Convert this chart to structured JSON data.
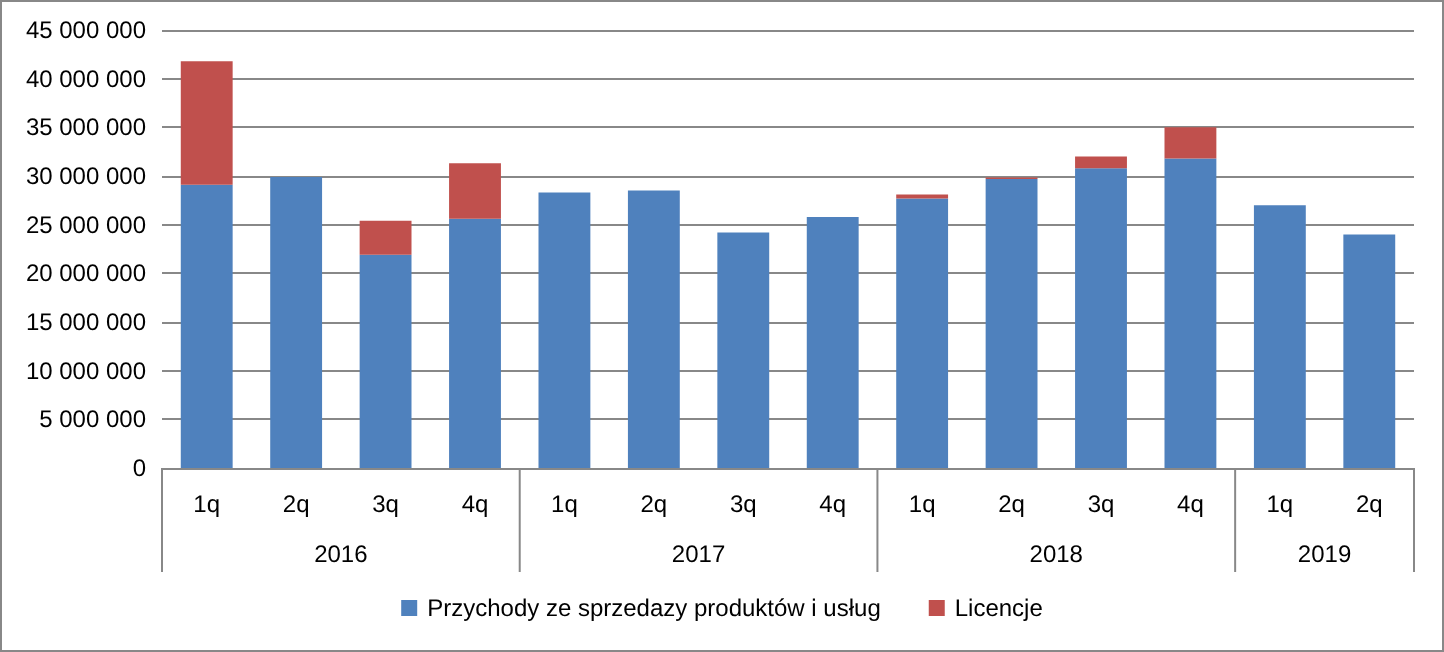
{
  "chart_data": {
    "type": "bar",
    "stacked": true,
    "categories": [
      "1q",
      "2q",
      "3q",
      "4q",
      "1q",
      "2q",
      "3q",
      "4q",
      "1q",
      "2q",
      "3q",
      "4q",
      "1q",
      "2q"
    ],
    "annotations": [
      "2016",
      "2017",
      "2018",
      "2019"
    ],
    "series": [
      {
        "name": "Przychody ze sprzedazy produktów i usług",
        "color": "#4f81bd",
        "values": [
          29100000,
          29900000,
          21900000,
          25600000,
          28300000,
          28500000,
          24200000,
          25800000,
          27700000,
          29700000,
          30800000,
          31800000,
          27000000,
          24000000
        ]
      },
      {
        "name": "Licencje",
        "color": "#c0504d",
        "values": [
          12700000,
          0,
          3500000,
          5700000,
          0,
          0,
          0,
          0,
          400000,
          150000,
          1200000,
          3200000,
          0,
          0
        ]
      }
    ],
    "ylim": [
      0,
      45000000
    ],
    "yticks": [
      0,
      5000000,
      10000000,
      15000000,
      20000000,
      25000000,
      30000000,
      35000000,
      40000000,
      45000000
    ],
    "grid": "y",
    "legend": "bottom"
  }
}
